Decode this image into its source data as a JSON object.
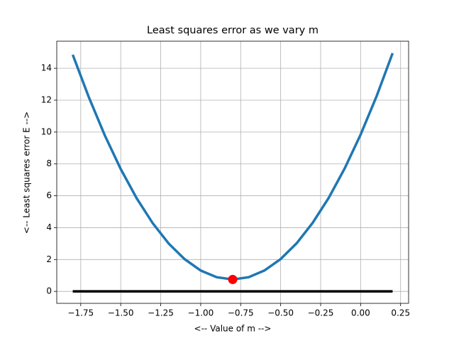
{
  "chart_data": {
    "type": "line",
    "title": "Least squares error as we vary m",
    "xlabel": "<-- Value of m -->",
    "ylabel": "<-- Least squares error E -->",
    "series": [
      {
        "style": "line",
        "color": "#1f77b4",
        "x": [
          -1.8,
          -1.7,
          -1.6,
          -1.5,
          -1.4,
          -1.3,
          -1.2,
          -1.1,
          -1.0,
          -0.9,
          -0.8,
          -0.7,
          -0.6,
          -0.5,
          -0.4,
          -0.3,
          -0.2,
          -0.1,
          0.0,
          0.1,
          0.2
        ],
        "values": [
          14.85,
          12.2,
          9.8,
          7.68,
          5.84,
          4.28,
          3.0,
          2.02,
          1.31,
          0.89,
          0.75,
          0.89,
          1.32,
          2.03,
          3.02,
          4.3,
          5.86,
          7.71,
          9.84,
          12.25,
          14.95
        ]
      },
      {
        "style": "line",
        "color": "#000000",
        "x": [
          -1.8,
          0.2
        ],
        "values": [
          0,
          0
        ]
      },
      {
        "style": "marker",
        "color": "#ff0000",
        "x": [
          -0.8
        ],
        "values": [
          0.75
        ]
      }
    ],
    "xlim": [
      -1.9,
      0.3
    ],
    "ylim": [
      -0.75,
      15.7
    ],
    "xticks": [
      {
        "value": -1.75,
        "label": "−1.75"
      },
      {
        "value": -1.5,
        "label": "−1.50"
      },
      {
        "value": -1.25,
        "label": "−1.25"
      },
      {
        "value": -1.0,
        "label": "−1.00"
      },
      {
        "value": -0.75,
        "label": "−0.75"
      },
      {
        "value": -0.5,
        "label": "−0.50"
      },
      {
        "value": -0.25,
        "label": "−0.25"
      },
      {
        "value": 0,
        "label": "0.00"
      },
      0.25
    ],
    "yticks": [
      0,
      2,
      4,
      6,
      8,
      10,
      12,
      14
    ],
    "grid": true
  }
}
